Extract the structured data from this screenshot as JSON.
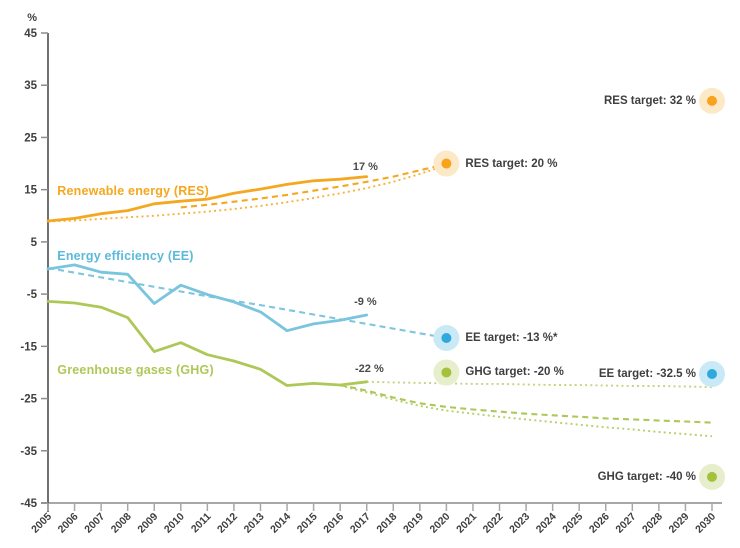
{
  "chart_data": {
    "type": "line",
    "unit_label": "%",
    "ylim": [
      -45,
      45
    ],
    "grid": false,
    "yticks": [
      45,
      35,
      25,
      15,
      5,
      -5,
      -15,
      -25,
      -35,
      -45
    ],
    "x_years": [
      2005,
      2006,
      2007,
      2008,
      2009,
      2010,
      2011,
      2012,
      2013,
      2014,
      2015,
      2016,
      2017,
      2018,
      2019,
      2020,
      2021,
      2022,
      2023,
      2024,
      2025,
      2026,
      2027,
      2028,
      2029,
      2030
    ],
    "colors": {
      "res": "#F5A71F",
      "ee_line": "#79C5DD",
      "ee_strong": "#2FA8DB",
      "ghg": "#ADC857",
      "text_dark": "#3F3F42",
      "axis_gray": "#A8A8A8"
    },
    "series": [
      {
        "id": "res-actual",
        "style": "solid",
        "color": "#F5A71F",
        "start_year": 2005,
        "values": [
          9.0,
          9.5,
          10.4,
          11.0,
          12.3,
          12.8,
          13.2,
          14.3,
          15.1,
          16.0,
          16.7,
          17.0,
          17.5
        ]
      },
      {
        "id": "res-expected-dashed",
        "style": "dashed",
        "color": "#F5A71F",
        "start_year": 2010,
        "values": [
          11.6,
          12.1,
          12.7,
          13.3,
          14.0,
          14.8,
          15.6,
          16.5,
          17.5,
          18.7,
          19.9
        ]
      },
      {
        "id": "res-indicative-dotted",
        "style": "dotted",
        "color": "#F7B23A",
        "start_year": 2005,
        "values": [
          8.9,
          9.1,
          9.4,
          9.7,
          10.0,
          10.4,
          10.8,
          11.3,
          11.9,
          12.6,
          13.4,
          14.3,
          15.3,
          16.5,
          18.0,
          19.7
        ]
      },
      {
        "id": "ee-actual",
        "style": "solid",
        "color": "#79C5DD",
        "start_year": 2005,
        "values": [
          -0.2,
          0.6,
          -0.8,
          -1.2,
          -6.8,
          -3.3,
          -5.1,
          -6.5,
          -8.4,
          -12.0,
          -10.7,
          -10.0,
          -9.0
        ]
      },
      {
        "id": "ee-linear-dashed",
        "style": "dashed",
        "color": "#7EC6DD",
        "start_year": 2005,
        "values": [
          0,
          -0.9,
          -1.8,
          -2.7,
          -3.6,
          -4.5,
          -5.4,
          -6.3,
          -7.1,
          -8.0,
          -8.9,
          -9.8,
          -10.7,
          -11.6,
          -12.5,
          -13.4
        ]
      },
      {
        "id": "ghg-actual",
        "style": "solid",
        "color": "#ADC857",
        "start_year": 2005,
        "values": [
          -6.4,
          -6.7,
          -7.5,
          -9.5,
          -16.0,
          -14.3,
          -16.6,
          -17.8,
          -19.4,
          -22.5,
          -22.1,
          -22.4,
          -21.8
        ]
      },
      {
        "id": "ghg-flat-dotted",
        "style": "dotted",
        "color": "#C3D57E",
        "start_year": 2017,
        "values": [
          -21.8,
          -21.9,
          -22.0,
          -22.1,
          -22.2,
          -22.2,
          -22.3,
          -22.4,
          -22.4,
          -22.5,
          -22.6,
          -22.6,
          -22.7,
          -22.8
        ]
      },
      {
        "id": "ghg-wem-dashed",
        "style": "dashed",
        "color": "#ADC857",
        "start_year": 2016,
        "values": [
          -22.4,
          -23.5,
          -24.8,
          -25.9,
          -26.6,
          -27.1,
          -27.5,
          -27.9,
          -28.2,
          -28.5,
          -28.8,
          -29.0,
          -29.2,
          -29.4,
          -29.6
        ]
      },
      {
        "id": "ghg-wam-dotted",
        "style": "dotted",
        "color": "#B8CF6A",
        "start_year": 2016,
        "values": [
          -22.5,
          -23.8,
          -25.2,
          -26.4,
          -27.3,
          -27.9,
          -28.5,
          -29.0,
          -29.5,
          -30.0,
          -30.5,
          -30.9,
          -31.4,
          -31.8,
          -32.2
        ]
      }
    ],
    "targets": [
      {
        "id": "res-2020",
        "label": "RES target: 20 %",
        "year": 2020,
        "value": 20,
        "dot_color": "#F9A21B",
        "halo_color": "#FCE9C7",
        "label_side": "right"
      },
      {
        "id": "ee-2020",
        "label": "EE target: -13 %*",
        "year": 2020,
        "value": -13.4,
        "dot_color": "#2FA8DB",
        "halo_color": "#C9E9F6",
        "label_side": "right"
      },
      {
        "id": "ghg-2020",
        "label": "GHG target: -20 %",
        "year": 2020,
        "value": -20,
        "dot_color": "#A4C13C",
        "halo_color": "#E6EECC",
        "label_side": "right"
      },
      {
        "id": "res-2030",
        "label": "RES target: 32 %",
        "year": 2030,
        "value": 32,
        "dot_color": "#F9A21B",
        "halo_color": "#FCE9C7",
        "label_side": "left"
      },
      {
        "id": "ee-2030",
        "label": "EE target: -32.5 %",
        "year": 2030,
        "value": -20.3,
        "dot_color": "#2FA8DB",
        "halo_color": "#C9E9F6",
        "label_side": "left"
      },
      {
        "id": "ghg-2030",
        "label": "GHG target: -40 %",
        "year": 2030,
        "value": -40,
        "dot_color": "#A4C13C",
        "halo_color": "#E6EECC",
        "label_side": "left"
      }
    ],
    "annotations": [
      {
        "id": "res-latest",
        "text": "17 %",
        "year": 2016.95,
        "value": 19.4
      },
      {
        "id": "ee-latest",
        "text": "-9 %",
        "year": 2016.95,
        "value": -6.6
      },
      {
        "id": "ghg-latest",
        "text": "-22 %",
        "year": 2017.1,
        "value": -19.4
      }
    ],
    "series_labels": [
      {
        "id": "res",
        "text": "Renewable energy (RES)",
        "color": "#F5A71F",
        "year": 2005.35,
        "value": 14.7
      },
      {
        "id": "ee",
        "text": "Energy efficiency (EE)",
        "color": "#5BB9D9",
        "year": 2005.35,
        "value": 2.3
      },
      {
        "id": "ghg",
        "text": "Greenhouse gases (GHG)",
        "color": "#ADC857",
        "year": 2005.35,
        "value": -19.5
      }
    ]
  }
}
